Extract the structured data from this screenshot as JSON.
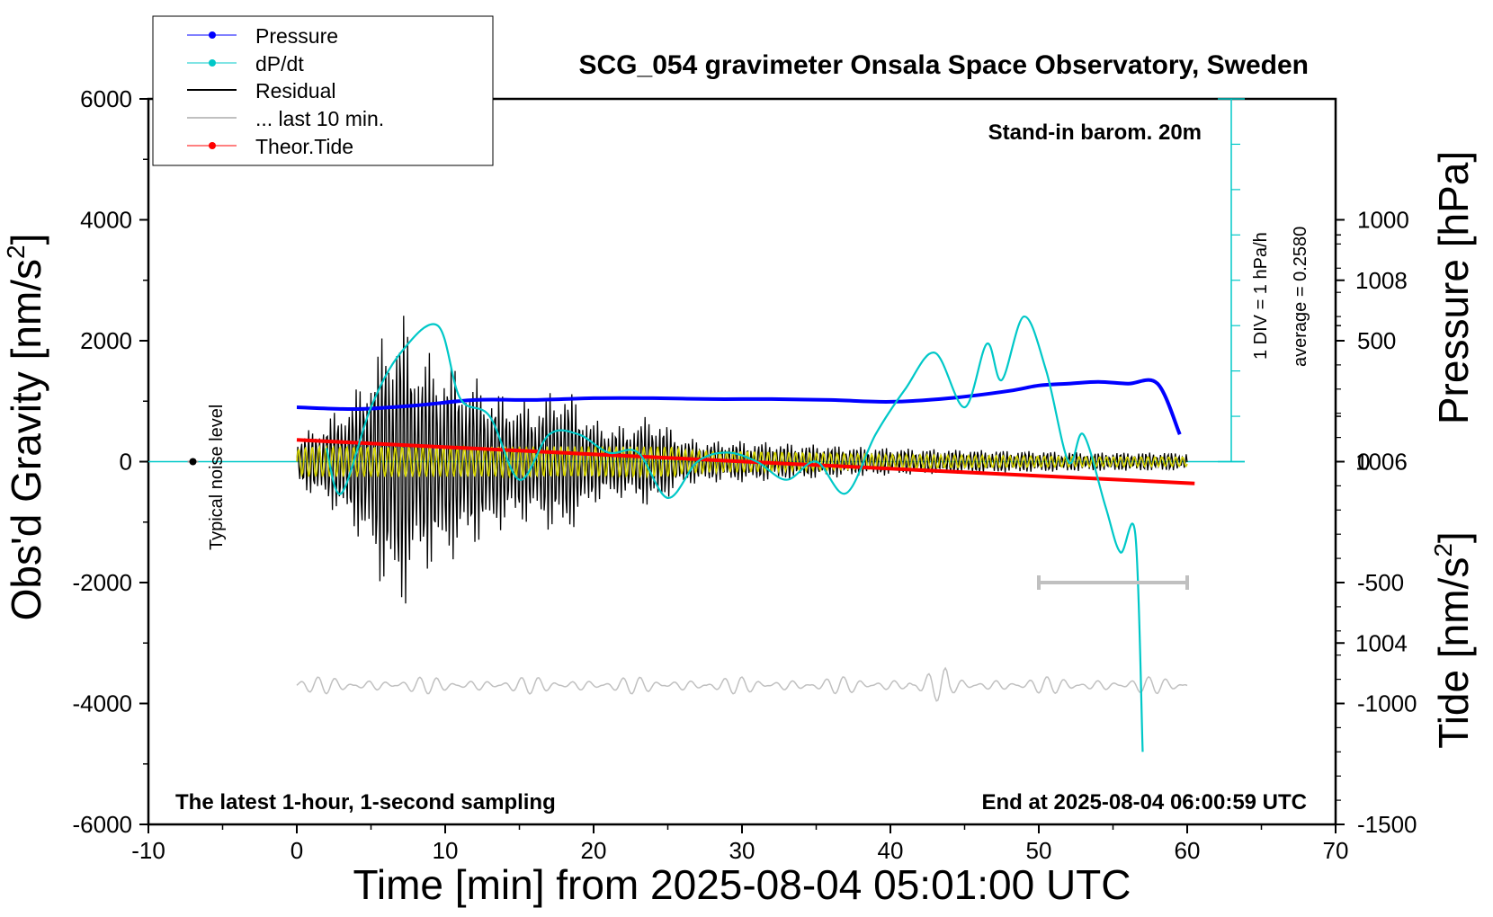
{
  "chart_data": {
    "type": "line",
    "title": "SCG_054 gravimeter Onsala Space Observatory, Sweden",
    "xlabel": "Time [min] from 2025-08-04 05:01:00 UTC",
    "ylabel_left": "Obs'd Gravity [nm/s",
    "ylabel_left_sup": "2",
    "ylabel_left_end": "]",
    "ylabel_right_pressure": "Pressure [hPa]",
    "ylabel_right_tide": "Tide [nm/s",
    "ylabel_right_tide_sup": "2",
    "ylabel_right_tide_end": "]",
    "xlim": [
      -10,
      70
    ],
    "ylim_left": [
      -6000,
      6000
    ],
    "ylim_pressure": [
      1002,
      1010
    ],
    "ylim_tide": [
      -1500,
      1500
    ],
    "x_ticks": [
      -10,
      0,
      10,
      20,
      30,
      40,
      50,
      60,
      70
    ],
    "y_ticks_left": [
      -6000,
      -4000,
      -2000,
      0,
      2000,
      4000,
      6000
    ],
    "y_ticks_pressure": [
      1004,
      1006,
      1008
    ],
    "y_ticks_tide": [
      -1500,
      -1000,
      -500,
      0,
      500,
      1000
    ],
    "annotations": {
      "barometer": "Stand-in barom. 20m",
      "sampling": "The latest 1-hour, 1-second sampling",
      "end_time": "End at 2025-08-04 06:00:59 UTC",
      "noise": "Typical noise level",
      "div_scale": "1 DIV = 1 hPa/h",
      "average": "average = 0.2580"
    },
    "legend": {
      "placement": "top-left",
      "entries": [
        "Pressure",
        "dP/dt",
        "Residual",
        "... last 10 min.",
        "Theor.Tide"
      ]
    },
    "series": [
      {
        "name": "Pressure",
        "axis": "pressure",
        "color": "#0000ff",
        "x": [
          0,
          4,
          8,
          12,
          16,
          20,
          24,
          28,
          32,
          36,
          40,
          44,
          48,
          50,
          52,
          54,
          56,
          58,
          59.5
        ],
        "values": [
          1006.6,
          1006.58,
          1006.62,
          1006.68,
          1006.68,
          1006.7,
          1006.7,
          1006.69,
          1006.69,
          1006.68,
          1006.66,
          1006.7,
          1006.78,
          1006.84,
          1006.86,
          1006.88,
          1006.86,
          1006.86,
          1006.3
        ]
      },
      {
        "name": "dP/dt",
        "axis": "pressure",
        "color": "#00c8c8",
        "x": [
          2,
          3,
          5,
          7,
          9.5,
          11,
          13,
          15,
          17,
          19,
          21,
          23,
          25,
          27,
          29,
          31,
          33,
          35,
          37,
          39,
          41,
          43,
          45,
          46.5,
          47.5,
          49,
          50.5,
          52,
          53,
          54.5,
          55.5,
          56.5,
          57
        ],
        "values": [
          0.15,
          -0.35,
          0.6,
          1.2,
          1.5,
          0.7,
          0.5,
          -0.2,
          0.3,
          0.3,
          0.1,
          0.1,
          -0.4,
          0.0,
          0.1,
          0.0,
          -0.2,
          0.0,
          -0.35,
          0.3,
          0.8,
          1.2,
          0.6,
          1.3,
          0.9,
          1.6,
          1.0,
          0.0,
          0.3,
          -0.5,
          -1.0,
          -0.8,
          -3.2
        ]
      },
      {
        "name": "Residual",
        "axis": "left",
        "color": "#000000",
        "x": [
          0,
          2,
          4,
          6,
          7,
          8,
          10,
          12,
          14,
          16,
          18,
          20,
          22,
          24,
          26,
          28,
          30,
          34,
          38,
          42,
          46,
          50,
          54,
          58,
          60
        ],
        "values": [
          400,
          700,
          1200,
          2200,
          2600,
          1900,
          1700,
          1400,
          1100,
          1000,
          1300,
          700,
          600,
          800,
          400,
          350,
          350,
          300,
          250,
          220,
          200,
          180,
          160,
          160,
          150
        ]
      },
      {
        "name": "Theor.Tide",
        "axis": "tide",
        "color": "#ff0000",
        "x": [
          0,
          60.5
        ],
        "values": [
          90,
          -90
        ]
      },
      {
        "name": "... last 10 min.",
        "axis": "left",
        "color": "#c0c0c0",
        "x": [
          0,
          60
        ],
        "values": [
          -3700,
          -3700
        ]
      }
    ],
    "noise_level": {
      "x": -7,
      "y": 0
    },
    "period_bar": {
      "x": [
        50,
        60
      ],
      "y": -2000
    },
    "dpdt_zero_line": 1006,
    "colors": {
      "pressure": "#0000ff",
      "dpdt": "#00c8c8",
      "residual": "#000000",
      "residual_filtered": "#d4d400",
      "last10": "#c0c0c0",
      "tide": "#ff0000"
    }
  }
}
